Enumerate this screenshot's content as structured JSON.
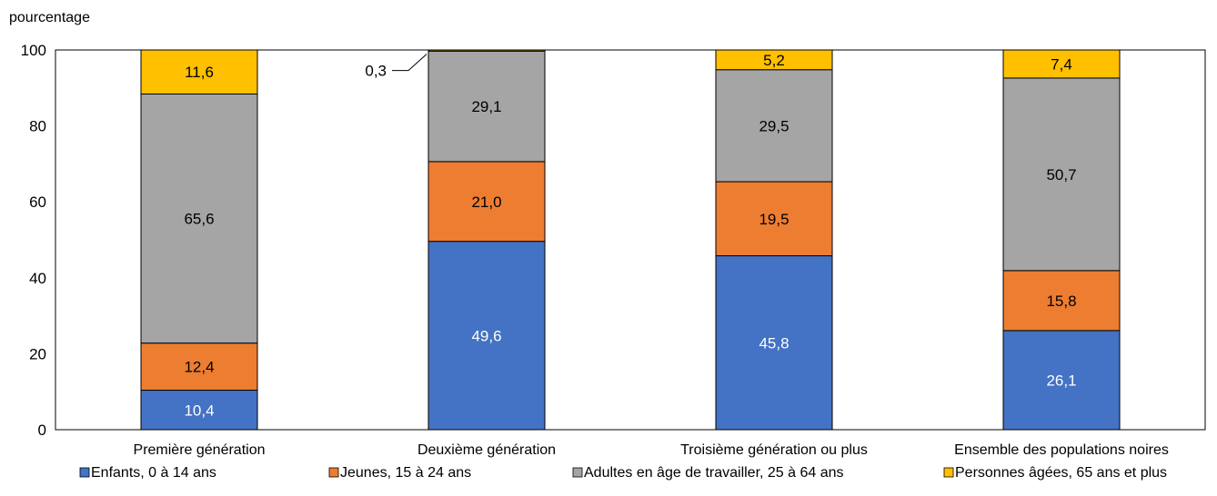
{
  "chart_data": {
    "type": "bar",
    "stacked": true,
    "title": "",
    "ylabel": "pourcentage",
    "xlabel": "",
    "ylim": [
      0,
      100
    ],
    "yticks": [
      0,
      20,
      40,
      60,
      80,
      100
    ],
    "grid": false,
    "legend_position": "bottom",
    "categories": [
      "Première génération",
      "Deuxième génération",
      "Troisième génération ou plus",
      "Ensemble des populations noires"
    ],
    "series": [
      {
        "name": "Enfants, 0 à 14 ans",
        "color": "#4472C4",
        "label_color": "#ffffff",
        "values": [
          10.4,
          49.6,
          45.8,
          26.1
        ],
        "labels": [
          "10,4",
          "49,6",
          "45,8",
          "26,1"
        ]
      },
      {
        "name": "Jeunes, 15 à 24 ans",
        "color": "#ED7D31",
        "label_color": "#000000",
        "values": [
          12.4,
          21.0,
          19.5,
          15.8
        ],
        "labels": [
          "12,4",
          "21,0",
          "19,5",
          "15,8"
        ]
      },
      {
        "name": "Adultes en âge de travailler, 25 à 64 ans",
        "color": "#A5A5A5",
        "label_color": "#000000",
        "values": [
          65.6,
          29.1,
          29.5,
          50.7
        ],
        "labels": [
          "65,6",
          "29,1",
          "29,5",
          "50,7"
        ]
      },
      {
        "name": "Personnes âgées, 65 ans et plus",
        "color": "#FFC000",
        "label_color": "#000000",
        "values": [
          11.6,
          0.3,
          5.2,
          7.4
        ],
        "labels": [
          "11,6",
          "0,3",
          "5,2",
          "7,4"
        ]
      }
    ],
    "callouts": [
      {
        "category_index": 1,
        "series_index": 3,
        "text": "0,3"
      }
    ]
  }
}
